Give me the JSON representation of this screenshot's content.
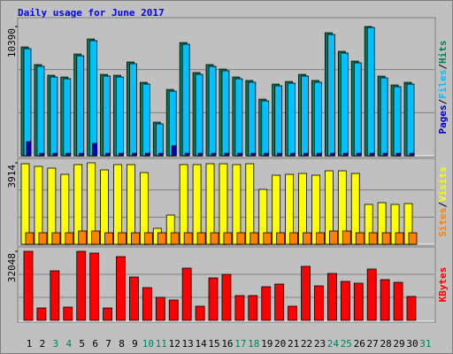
{
  "chart_data": {
    "type": "bar",
    "title": "Daily usage for June 2017",
    "separator": "/",
    "categories": [
      "1",
      "2",
      "3",
      "4",
      "5",
      "6",
      "7",
      "8",
      "9",
      "10",
      "11",
      "12",
      "13",
      "14",
      "15",
      "16",
      "17",
      "18",
      "19",
      "20",
      "21",
      "22",
      "23",
      "24",
      "25",
      "26",
      "27",
      "28",
      "29",
      "30",
      "31"
    ],
    "category_colors": [
      "#000000",
      "#000000",
      "#00805c",
      "#00805c",
      "#000000",
      "#000000",
      "#000000",
      "#000000",
      "#000000",
      "#00805c",
      "#00805c",
      "#000000",
      "#000000",
      "#000000",
      "#000000",
      "#000000",
      "#00805c",
      "#00805c",
      "#000000",
      "#000000",
      "#000000",
      "#000000",
      "#000000",
      "#00805c",
      "#00805c",
      "#000000",
      "#000000",
      "#000000",
      "#000000",
      "#000000",
      "#00805c"
    ],
    "panels": [
      {
        "ylim": [
          0,
          10390
        ],
        "yticks": [
          10390
        ],
        "series": [
          {
            "name": "Hits",
            "color": "#00805c",
            "values": [
              8750,
              7330,
              6470,
              6330,
              8180,
              9390,
              6540,
              6470,
              7540,
              5900,
              2700,
              5330,
              9100,
              6690,
              7330,
              6970,
              6330,
              6050,
              4550,
              5760,
              5970,
              6540,
              6050,
              9890,
              8390,
              7610,
              10390,
              6400,
              5690,
              5900,
              0
            ]
          },
          {
            "name": "Files",
            "color": "#00c0ff",
            "values": [
              8611,
              7188,
              6334,
              6191,
              8041,
              9251,
              6405,
              6334,
              7401,
              5764,
              2562,
              5195,
              8967,
              6547,
              7188,
              6832,
              6191,
              5907,
              4412,
              5622,
              5835,
              6405,
              5907,
              9750,
              8255,
              7472,
              10319,
              6262,
              5551,
              5764,
              0
            ]
          },
          {
            "name": "Pages",
            "color": "#0000c0",
            "values": [
              1139,
              200,
              200,
              200,
              200,
              1000,
              200,
              200,
              200,
              200,
              200,
              800,
              200,
              200,
              200,
              200,
              200,
              200,
              200,
              200,
              200,
              200,
              200,
              200,
              200,
              200,
              200,
              200,
              200,
              200,
              0
            ]
          }
        ]
      },
      {
        "ylim": [
          0,
          3914
        ],
        "yticks": [
          3914
        ],
        "series": [
          {
            "name": "Visits",
            "color": "#ffff00",
            "values": [
              3871,
              3744,
              3659,
              3361,
              3829,
              3914,
              3574,
              3829,
              3829,
              3446,
              766,
              1404,
              3829,
              3829,
              3871,
              3871,
              3829,
              3871,
              2638,
              3319,
              3361,
              3404,
              3319,
              3531,
              3531,
              3404,
              1915,
              2000,
              1915,
              1957,
              0
            ]
          },
          {
            "name": "Sites",
            "color": "#ff8000",
            "values": [
              553,
              553,
              553,
              553,
              638,
              638,
              553,
              553,
              553,
              553,
              553,
              553,
              553,
              553,
              553,
              553,
              553,
              553,
              553,
              553,
              553,
              553,
              553,
              638,
              638,
              553,
              553,
              553,
              553,
              553,
              0
            ]
          }
        ]
      },
      {
        "ylim": [
          0,
          32048
        ],
        "yticks": [
          32048
        ],
        "series": [
          {
            "name": "KBytes",
            "color": "#ff0000",
            "values": [
              32048,
              5752,
              23009,
              6163,
              32048,
              31226,
              5752,
              29583,
              20132,
              15202,
              10683,
              9450,
              24241,
              6574,
              19722,
              21365,
              11504,
              11504,
              15613,
              16845,
              6574,
              25063,
              16024,
              21776,
              18078,
              17256,
              23830,
              18900,
              17667,
              11093,
              0
            ]
          }
        ]
      }
    ]
  }
}
